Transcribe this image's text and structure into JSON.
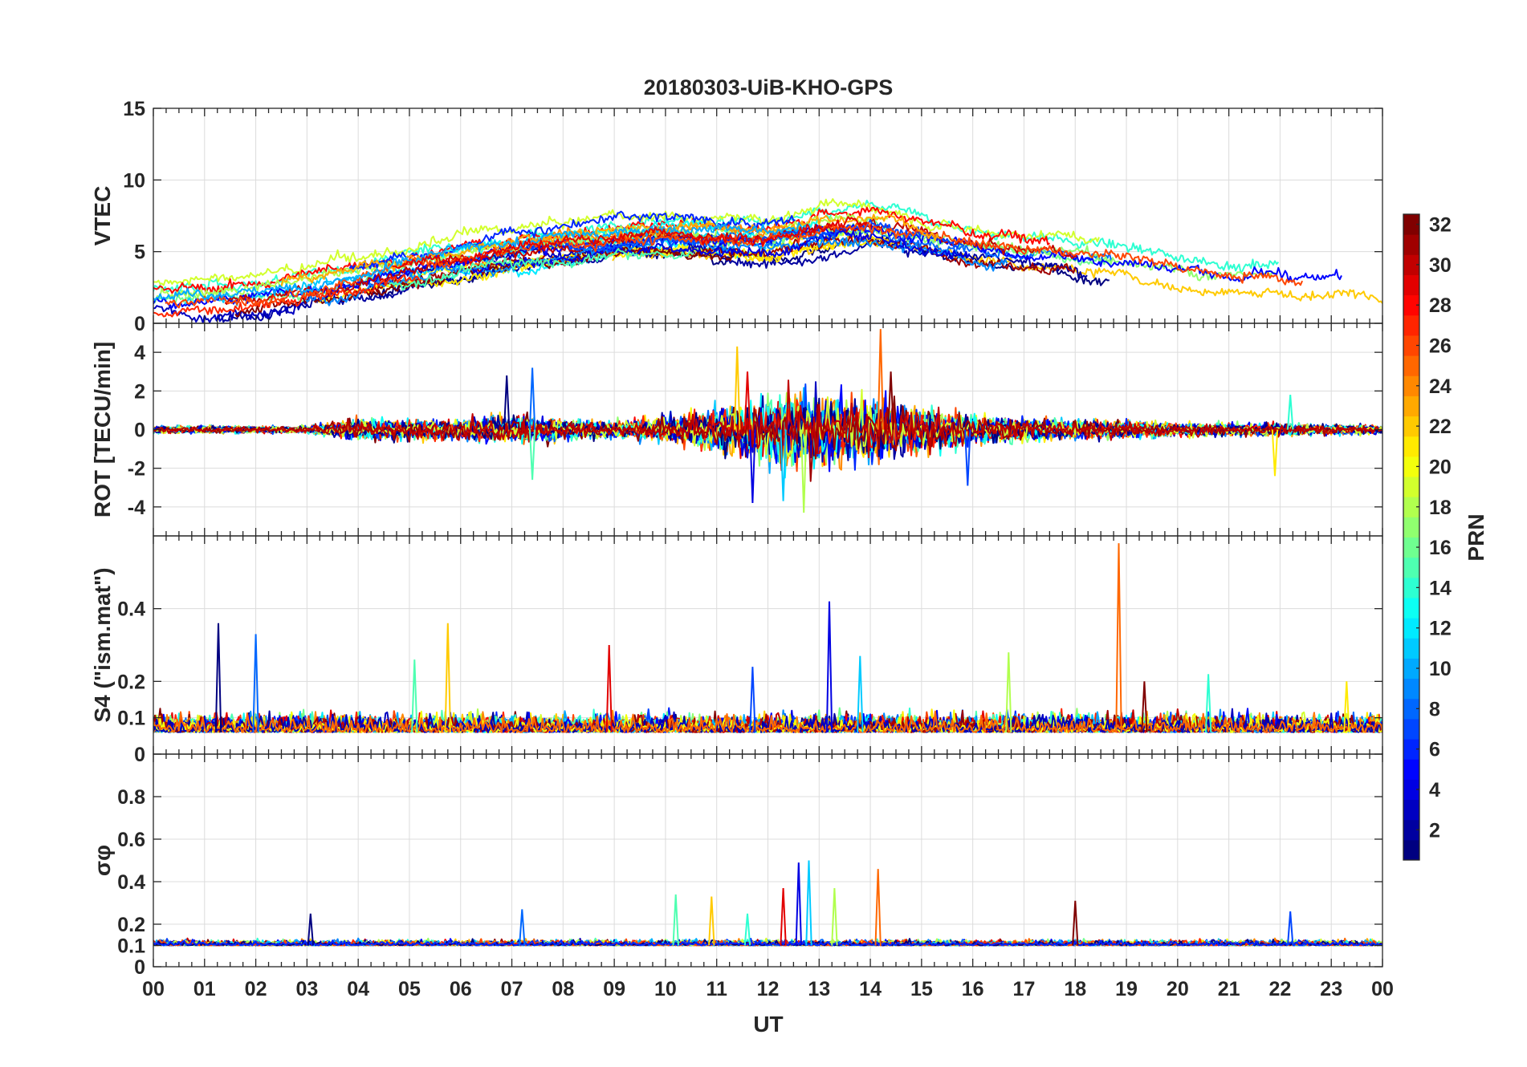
{
  "chart_data": {
    "type": "line",
    "title": "20180303-UiB-KHO-GPS",
    "xlabel": "UT",
    "x_unit": "hour",
    "xlim": [
      0,
      24
    ],
    "x_tick_labels": [
      "00",
      "01",
      "02",
      "03",
      "04",
      "05",
      "06",
      "07",
      "08",
      "09",
      "10",
      "11",
      "12",
      "13",
      "14",
      "15",
      "16",
      "17",
      "18",
      "19",
      "20",
      "21",
      "22",
      "23",
      "00"
    ],
    "grid": true,
    "colorbar": {
      "label": "PRN",
      "range": [
        1,
        32
      ],
      "colormap": "jet",
      "tick_labels": [
        "2",
        "4",
        "6",
        "8",
        "10",
        "12",
        "14",
        "16",
        "18",
        "20",
        "22",
        "24",
        "26",
        "28",
        "30",
        "32"
      ],
      "colors": [
        "#00008f",
        "#0000ff",
        "#0080ff",
        "#00ffff",
        "#80ff80",
        "#ffff00",
        "#ff8000",
        "#ff0000",
        "#800000"
      ]
    },
    "panels": [
      {
        "ylabel": "VTEC",
        "ylim": [
          0,
          15
        ],
        "yticks": [
          0,
          5,
          10,
          15
        ],
        "y_tick_labels": [
          "0",
          "5",
          "10",
          "15"
        ],
        "trend": {
          "x": [
            0,
            1,
            2,
            3,
            4,
            5,
            6,
            7,
            8,
            9,
            10,
            11,
            12,
            13,
            14,
            15,
            16,
            17,
            18,
            19,
            20,
            21,
            22,
            23,
            24
          ],
          "y": [
            1.6,
            1.6,
            2.0,
            2.6,
            3.2,
            3.9,
            4.6,
            5.2,
            5.6,
            6.0,
            6.3,
            6.1,
            6.0,
            6.8,
            7.0,
            6.3,
            5.6,
            5.2,
            4.9,
            4.6,
            4.0,
            3.5,
            3.4,
            3.3,
            2.6
          ]
        },
        "spread": 1.3,
        "noise": 0.25
      },
      {
        "ylabel": "ROT [TECU/min]",
        "ylim": [
          -5.5,
          5.5
        ],
        "yticks": [
          -4,
          -2,
          0,
          2,
          4
        ],
        "y_tick_labels": [
          "-4",
          "-2",
          "0",
          "2",
          "4"
        ],
        "envelope": {
          "x": [
            0,
            3,
            4,
            6,
            7,
            8,
            9,
            10,
            11,
            12,
            12.8,
            13.5,
            14,
            15,
            16,
            17,
            18,
            19,
            20,
            22,
            24
          ],
          "amp": [
            0.15,
            0.15,
            0.45,
            0.45,
            0.6,
            0.45,
            0.35,
            0.55,
            0.9,
            1.3,
            1.6,
            1.4,
            1.3,
            0.9,
            0.6,
            0.5,
            0.4,
            0.35,
            0.3,
            0.25,
            0.2
          ]
        },
        "spikes": [
          {
            "x": 6.9,
            "y": 2.8
          },
          {
            "x": 7.4,
            "y": 3.2
          },
          {
            "x": 7.4,
            "y": -2.6
          },
          {
            "x": 11.4,
            "y": 4.3
          },
          {
            "x": 11.6,
            "y": 3.0
          },
          {
            "x": 11.7,
            "y": -3.8
          },
          {
            "x": 12.3,
            "y": -3.7
          },
          {
            "x": 12.7,
            "y": -4.3
          },
          {
            "x": 14.2,
            "y": 5.2
          },
          {
            "x": 14.4,
            "y": 3.0
          },
          {
            "x": 15.9,
            "y": -2.9
          },
          {
            "x": 22.2,
            "y": 1.8
          },
          {
            "x": 21.9,
            "y": -2.4
          }
        ]
      },
      {
        "ylabel": "S4 (\"ism.mat\")",
        "ylim": [
          0,
          0.6
        ],
        "yticks": [
          0,
          0.1,
          0.2,
          0.4
        ],
        "y_tick_labels": [
          "0",
          "0.1",
          "0.2",
          "0.4"
        ],
        "baseline": 0.06,
        "noise": 0.03,
        "spikes": [
          {
            "x": 1.27,
            "y": 0.36
          },
          {
            "x": 2.0,
            "y": 0.33
          },
          {
            "x": 5.1,
            "y": 0.26
          },
          {
            "x": 5.75,
            "y": 0.36
          },
          {
            "x": 8.9,
            "y": 0.3
          },
          {
            "x": 13.2,
            "y": 0.42
          },
          {
            "x": 13.8,
            "y": 0.27
          },
          {
            "x": 16.7,
            "y": 0.28
          },
          {
            "x": 18.85,
            "y": 0.58
          },
          {
            "x": 19.35,
            "y": 0.2
          },
          {
            "x": 11.7,
            "y": 0.24
          },
          {
            "x": 20.6,
            "y": 0.22
          },
          {
            "x": 23.3,
            "y": 0.2
          }
        ]
      },
      {
        "ylabel": "σφ",
        "ylim": [
          0,
          1
        ],
        "yticks": [
          0,
          0.1,
          0.2,
          0.4,
          0.6,
          0.8
        ],
        "y_tick_labels": [
          "0",
          "0.1",
          "0.2",
          "0.4",
          "0.6",
          "0.8"
        ],
        "baseline": 0.1,
        "noise": 0.015,
        "spikes": [
          {
            "x": 3.07,
            "y": 0.25
          },
          {
            "x": 7.2,
            "y": 0.27
          },
          {
            "x": 10.2,
            "y": 0.34
          },
          {
            "x": 10.9,
            "y": 0.33
          },
          {
            "x": 12.3,
            "y": 0.37
          },
          {
            "x": 12.6,
            "y": 0.49
          },
          {
            "x": 12.8,
            "y": 0.5
          },
          {
            "x": 13.3,
            "y": 0.37
          },
          {
            "x": 14.15,
            "y": 0.46
          },
          {
            "x": 18.0,
            "y": 0.31
          },
          {
            "x": 22.2,
            "y": 0.26
          },
          {
            "x": 11.6,
            "y": 0.25
          }
        ]
      }
    ]
  }
}
